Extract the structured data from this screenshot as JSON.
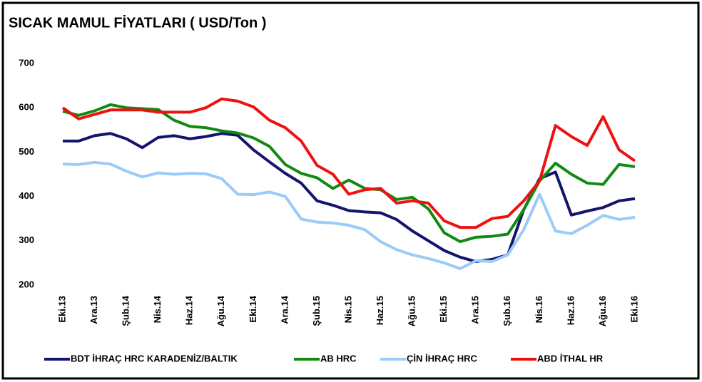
{
  "chart_data": {
    "type": "line",
    "title": "SICAK MAMUL FİYATLARI ( USD/Ton )",
    "categories": [
      "Eki.13",
      null,
      "Ara.13",
      null,
      "Şub.14",
      null,
      "Nis.14",
      null,
      "Haz.14",
      null,
      "Ağu.14",
      null,
      "Eki.14",
      null,
      "Ara.14",
      null,
      "Şub.15",
      null,
      "Nis.15",
      null,
      "Haz.15",
      null,
      "Ağu.15",
      null,
      "Eki.15",
      null,
      "Ara.15",
      null,
      "Şub.16",
      null,
      "Nis.16",
      null,
      "Haz.16",
      null,
      "Ağu.16",
      null,
      "Eki.16"
    ],
    "series": [
      {
        "name": "BDT İHRAÇ HRC KARADENİZ/BALTIK",
        "color": "#14146e",
        "values": [
          525,
          525,
          537,
          542,
          530,
          510,
          533,
          537,
          530,
          535,
          542,
          538,
          505,
          478,
          452,
          430,
          390,
          380,
          368,
          365,
          363,
          348,
          322,
          300,
          278,
          263,
          253,
          258,
          268,
          370,
          440,
          455,
          358,
          367,
          375,
          390,
          395
        ]
      },
      {
        "name": "AB HRC",
        "color": "#118a11",
        "values": [
          592,
          583,
          593,
          607,
          600,
          598,
          596,
          572,
          558,
          555,
          548,
          543,
          532,
          513,
          472,
          452,
          442,
          418,
          437,
          418,
          415,
          393,
          398,
          372,
          318,
          298,
          308,
          310,
          315,
          370,
          435,
          475,
          450,
          430,
          427,
          472,
          467
        ]
      },
      {
        "name": "ÇİN İHRAÇ HRC",
        "color": "#9ccbf7",
        "values": [
          473,
          472,
          477,
          473,
          457,
          444,
          453,
          450,
          452,
          451,
          440,
          405,
          404,
          410,
          400,
          349,
          342,
          340,
          335,
          325,
          298,
          280,
          268,
          260,
          250,
          237,
          255,
          253,
          268,
          325,
          405,
          322,
          316,
          335,
          357,
          348,
          353
        ]
      },
      {
        "name": "ABD İTHAL HR",
        "color": "#ee1111",
        "values": [
          600,
          575,
          585,
          595,
          595,
          595,
          590,
          590,
          590,
          600,
          620,
          615,
          602,
          572,
          555,
          525,
          470,
          450,
          405,
          415,
          418,
          385,
          390,
          385,
          345,
          330,
          330,
          350,
          355,
          390,
          435,
          560,
          535,
          515,
          580,
          505,
          480
        ]
      }
    ],
    "ylim": [
      200,
      700
    ],
    "yticks": [
      200,
      300,
      400,
      500,
      600,
      700
    ]
  }
}
